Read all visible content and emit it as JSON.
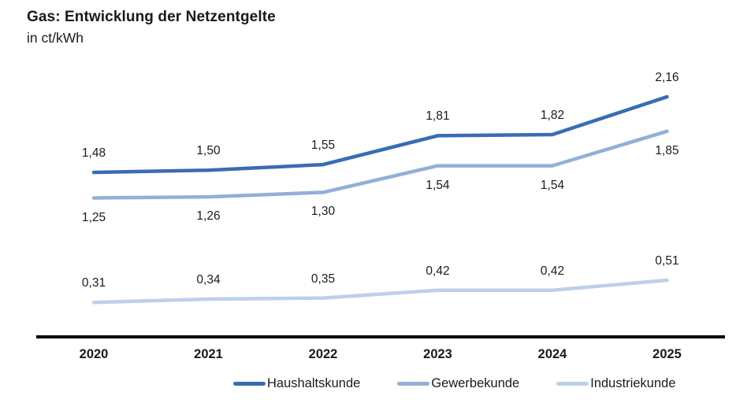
{
  "chart_data": {
    "type": "line",
    "title": "Gas: Entwicklung der Netzentgelte",
    "unit_label": "in ct/kWh",
    "categories": [
      "2020",
      "2021",
      "2022",
      "2023",
      "2024",
      "2025"
    ],
    "series": [
      {
        "name": "Haushaltskunde",
        "color": "#3a6cb4",
        "values": [
          1.48,
          1.5,
          1.55,
          1.81,
          1.82,
          2.16
        ],
        "labels": [
          "1,48",
          "1,50",
          "1,55",
          "1,81",
          "1,82",
          "2,16"
        ],
        "label_position": "above"
      },
      {
        "name": "Gewerbekunde",
        "color": "#92afd7",
        "values": [
          1.25,
          1.26,
          1.3,
          1.54,
          1.54,
          1.85
        ],
        "labels": [
          "1,25",
          "1,26",
          "1,30",
          "1,54",
          "1,54",
          "1,85"
        ],
        "label_position": "below"
      },
      {
        "name": "Industriekunde",
        "color": "#bdcfe9",
        "values": [
          0.31,
          0.34,
          0.35,
          0.42,
          0.42,
          0.51
        ],
        "labels": [
          "0,31",
          "0,34",
          "0,35",
          "0,42",
          "0,42",
          "0,51"
        ],
        "label_position": "above"
      }
    ],
    "ylim": [
      0,
      2.4
    ],
    "grid": false,
    "legend_position": "bottom",
    "axis_color": "#000000",
    "text_color": "#1a1a1a"
  }
}
